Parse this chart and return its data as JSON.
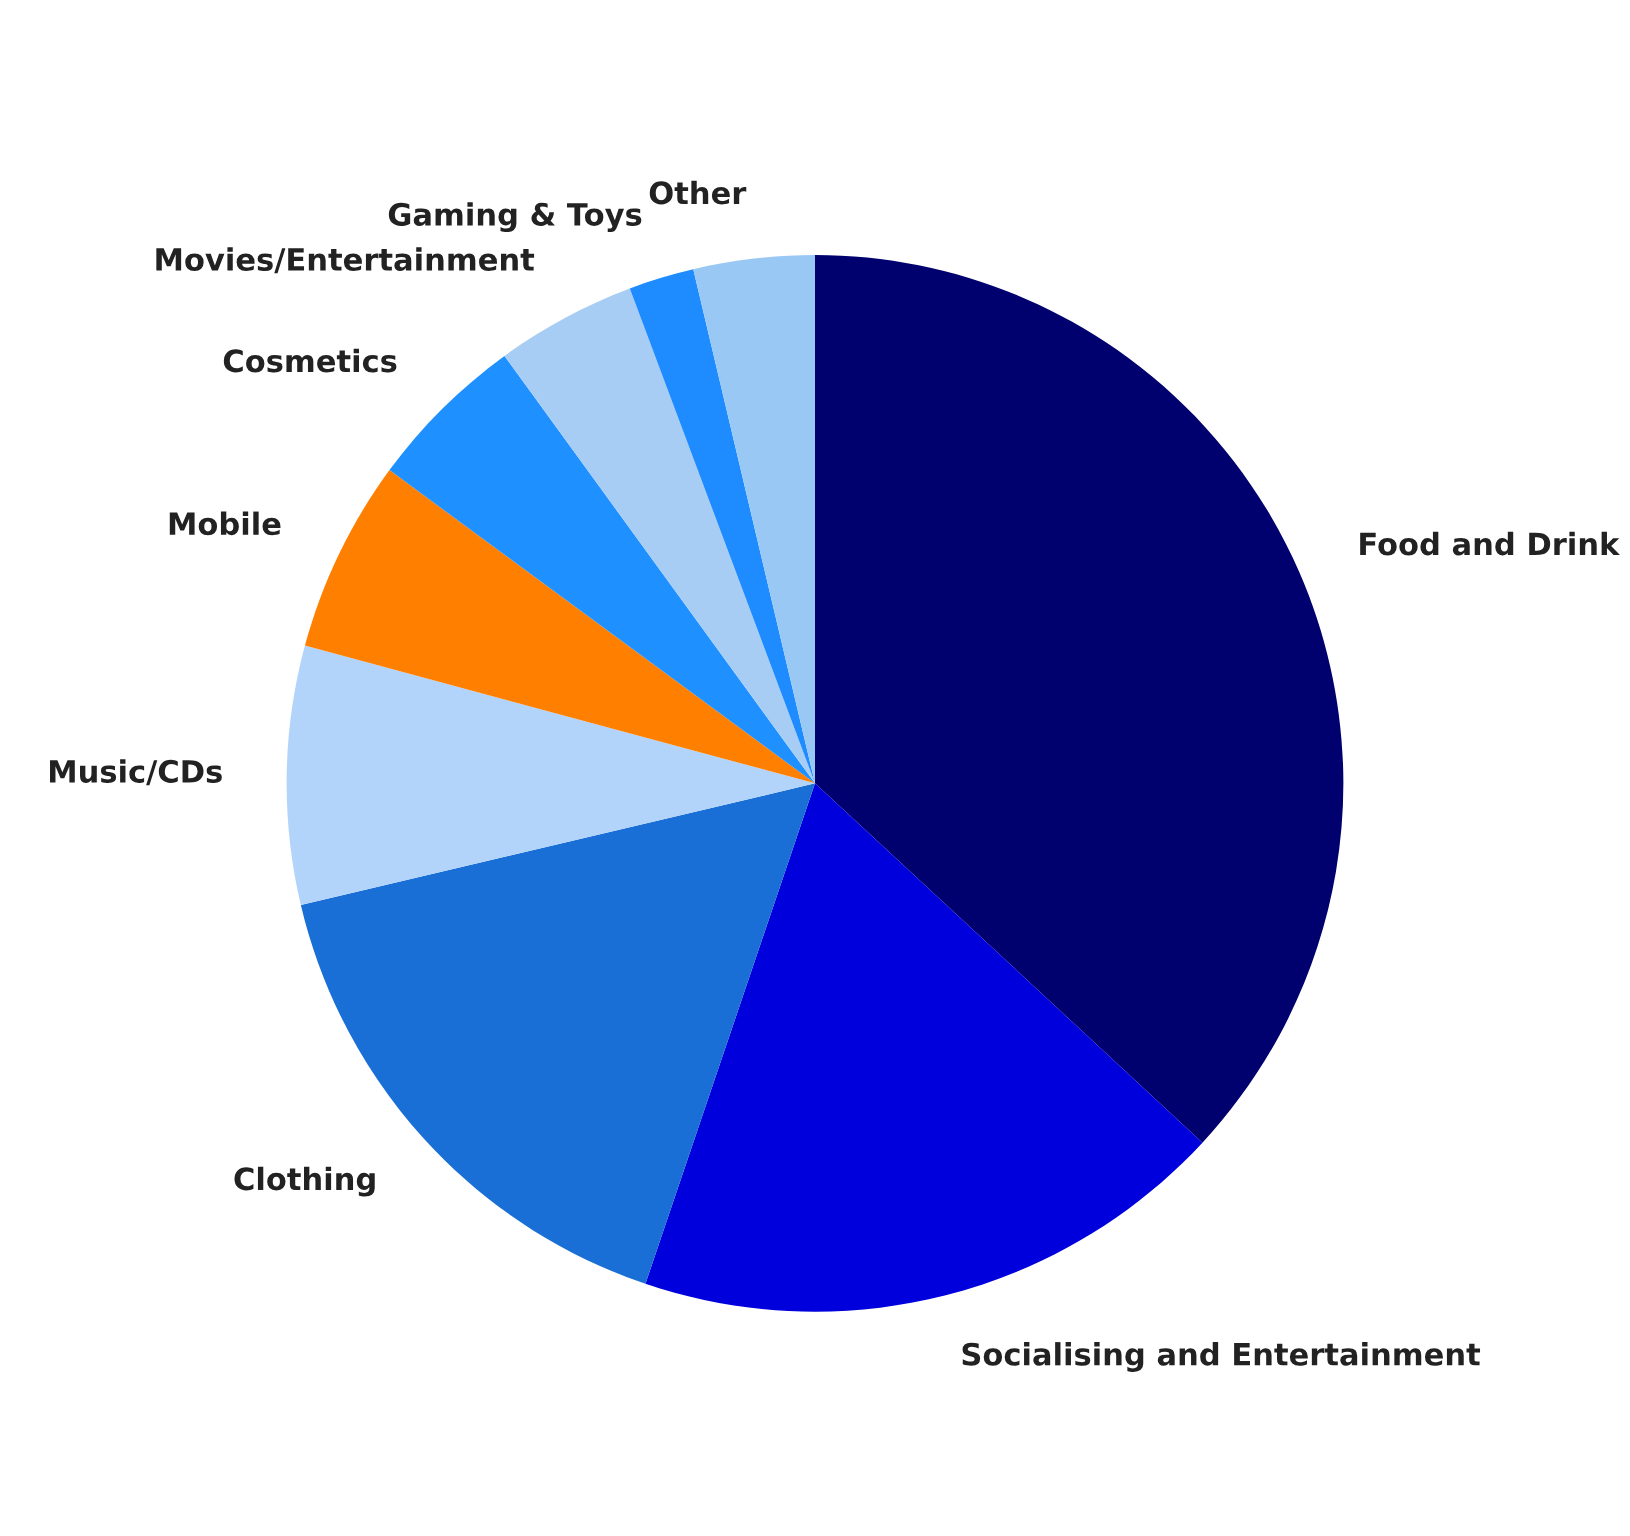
{
  "chart_data": {
    "type": "pie",
    "categories": [
      "Food and Drink",
      "Socialising and Entertainment",
      "Clothing",
      "Music/CDs",
      "Mobile",
      "Cosmetics",
      "Movies/Entertainment",
      "Gaming & Toys",
      "Other"
    ],
    "values": [
      36.9,
      18.3,
      16.1,
      7.9,
      5.9,
      4.9,
      4.3,
      2.0,
      3.7
    ],
    "colors": [
      "#00006e",
      "#0000dc",
      "#1a6fd6",
      "#b3d4fa",
      "#ff8000",
      "#1e90ff",
      "#a8cdf5",
      "#1e8cff",
      "#99c8f5"
    ],
    "legend": false
  }
}
